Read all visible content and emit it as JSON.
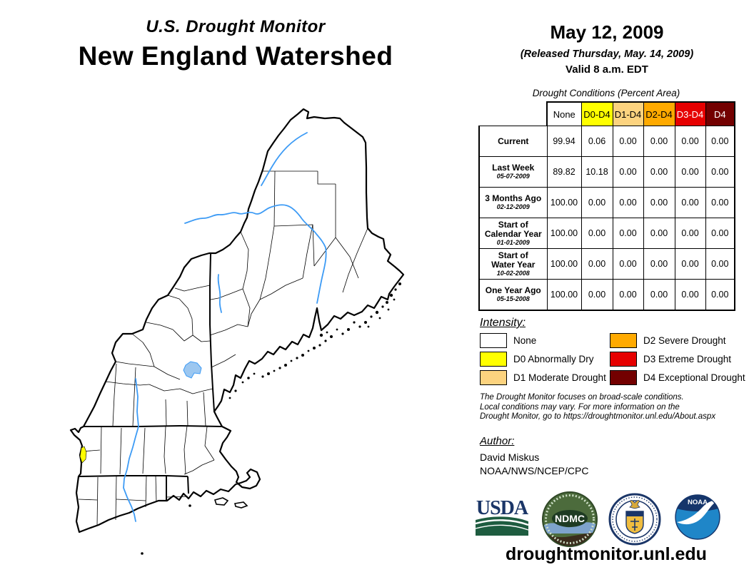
{
  "header": {
    "monitor_title": "U.S. Drought Monitor",
    "region_title": "New England Watershed",
    "date": "May 12, 2009",
    "released": "(Released Thursday, May. 14, 2009)",
    "valid": "Valid 8 a.m. EDT"
  },
  "table": {
    "title": "Drought Conditions (Percent Area)",
    "columns": [
      "None",
      "D0-D4",
      "D1-D4",
      "D2-D4",
      "D3-D4",
      "D4"
    ],
    "column_colors": [
      "#FFFFFF",
      "#FFFF00",
      "#FCD37F",
      "#FFAA00",
      "#E60000",
      "#730000"
    ],
    "column_text_colors": [
      "#000000",
      "#000000",
      "#000000",
      "#000000",
      "#FFFFFF",
      "#FFFFFF"
    ],
    "rows": [
      {
        "label_lines": [
          "Current"
        ],
        "date": "",
        "values": [
          "99.94",
          "0.06",
          "0.00",
          "0.00",
          "0.00",
          "0.00"
        ]
      },
      {
        "label_lines": [
          "Last Week"
        ],
        "date": "05-07-2009",
        "values": [
          "89.82",
          "10.18",
          "0.00",
          "0.00",
          "0.00",
          "0.00"
        ]
      },
      {
        "label_lines": [
          "3 Months Ago"
        ],
        "date": "02-12-2009",
        "values": [
          "100.00",
          "0.00",
          "0.00",
          "0.00",
          "0.00",
          "0.00"
        ]
      },
      {
        "label_lines": [
          "Start of",
          "Calendar Year"
        ],
        "date": "01-01-2009",
        "values": [
          "100.00",
          "0.00",
          "0.00",
          "0.00",
          "0.00",
          "0.00"
        ]
      },
      {
        "label_lines": [
          "Start of",
          "Water Year"
        ],
        "date": "10-02-2008",
        "values": [
          "100.00",
          "0.00",
          "0.00",
          "0.00",
          "0.00",
          "0.00"
        ]
      },
      {
        "label_lines": [
          "One Year Ago"
        ],
        "date": "05-15-2008",
        "values": [
          "100.00",
          "0.00",
          "0.00",
          "0.00",
          "0.00",
          "0.00"
        ]
      }
    ]
  },
  "legend": {
    "title": "Intensity:",
    "columns": [
      [
        {
          "label": "None",
          "color": "#FFFFFF"
        },
        {
          "label": "D0 Abnormally Dry",
          "color": "#FFFF00"
        },
        {
          "label": "D1 Moderate Drought",
          "color": "#FCD37F"
        }
      ],
      [
        {
          "label": "D2 Severe Drought",
          "color": "#FFAA00"
        },
        {
          "label": "D3 Extreme Drought",
          "color": "#E60000"
        },
        {
          "label": "D4 Exceptional Drought",
          "color": "#730000"
        }
      ]
    ]
  },
  "disclaimer": {
    "lines": [
      "The Drought Monitor focuses on broad-scale conditions.",
      "Local conditions may vary. For more information on the",
      "Drought Monitor, go to https://droughtmonitor.unl.edu/About.aspx"
    ]
  },
  "author": {
    "title": "Author:",
    "name": "David Miskus",
    "org": "NOAA/NWS/NCEP/CPC"
  },
  "logos": [
    {
      "name": "USDA",
      "text": "USDA"
    },
    {
      "name": "National Drought Mitigation Center",
      "text": "NDMC"
    },
    {
      "name": "U.S. Department of Commerce",
      "text": ""
    },
    {
      "name": "NOAA",
      "text": "NOAA"
    }
  ],
  "footer": {
    "url": "droughtmonitor.unl.edu"
  },
  "map": {
    "region": "New England Watershed",
    "colors": {
      "d0_fill": "#FFFF00",
      "river": "#3d9bf5",
      "lake_fill": "#9cc7f0",
      "outline": "#000000"
    }
  }
}
